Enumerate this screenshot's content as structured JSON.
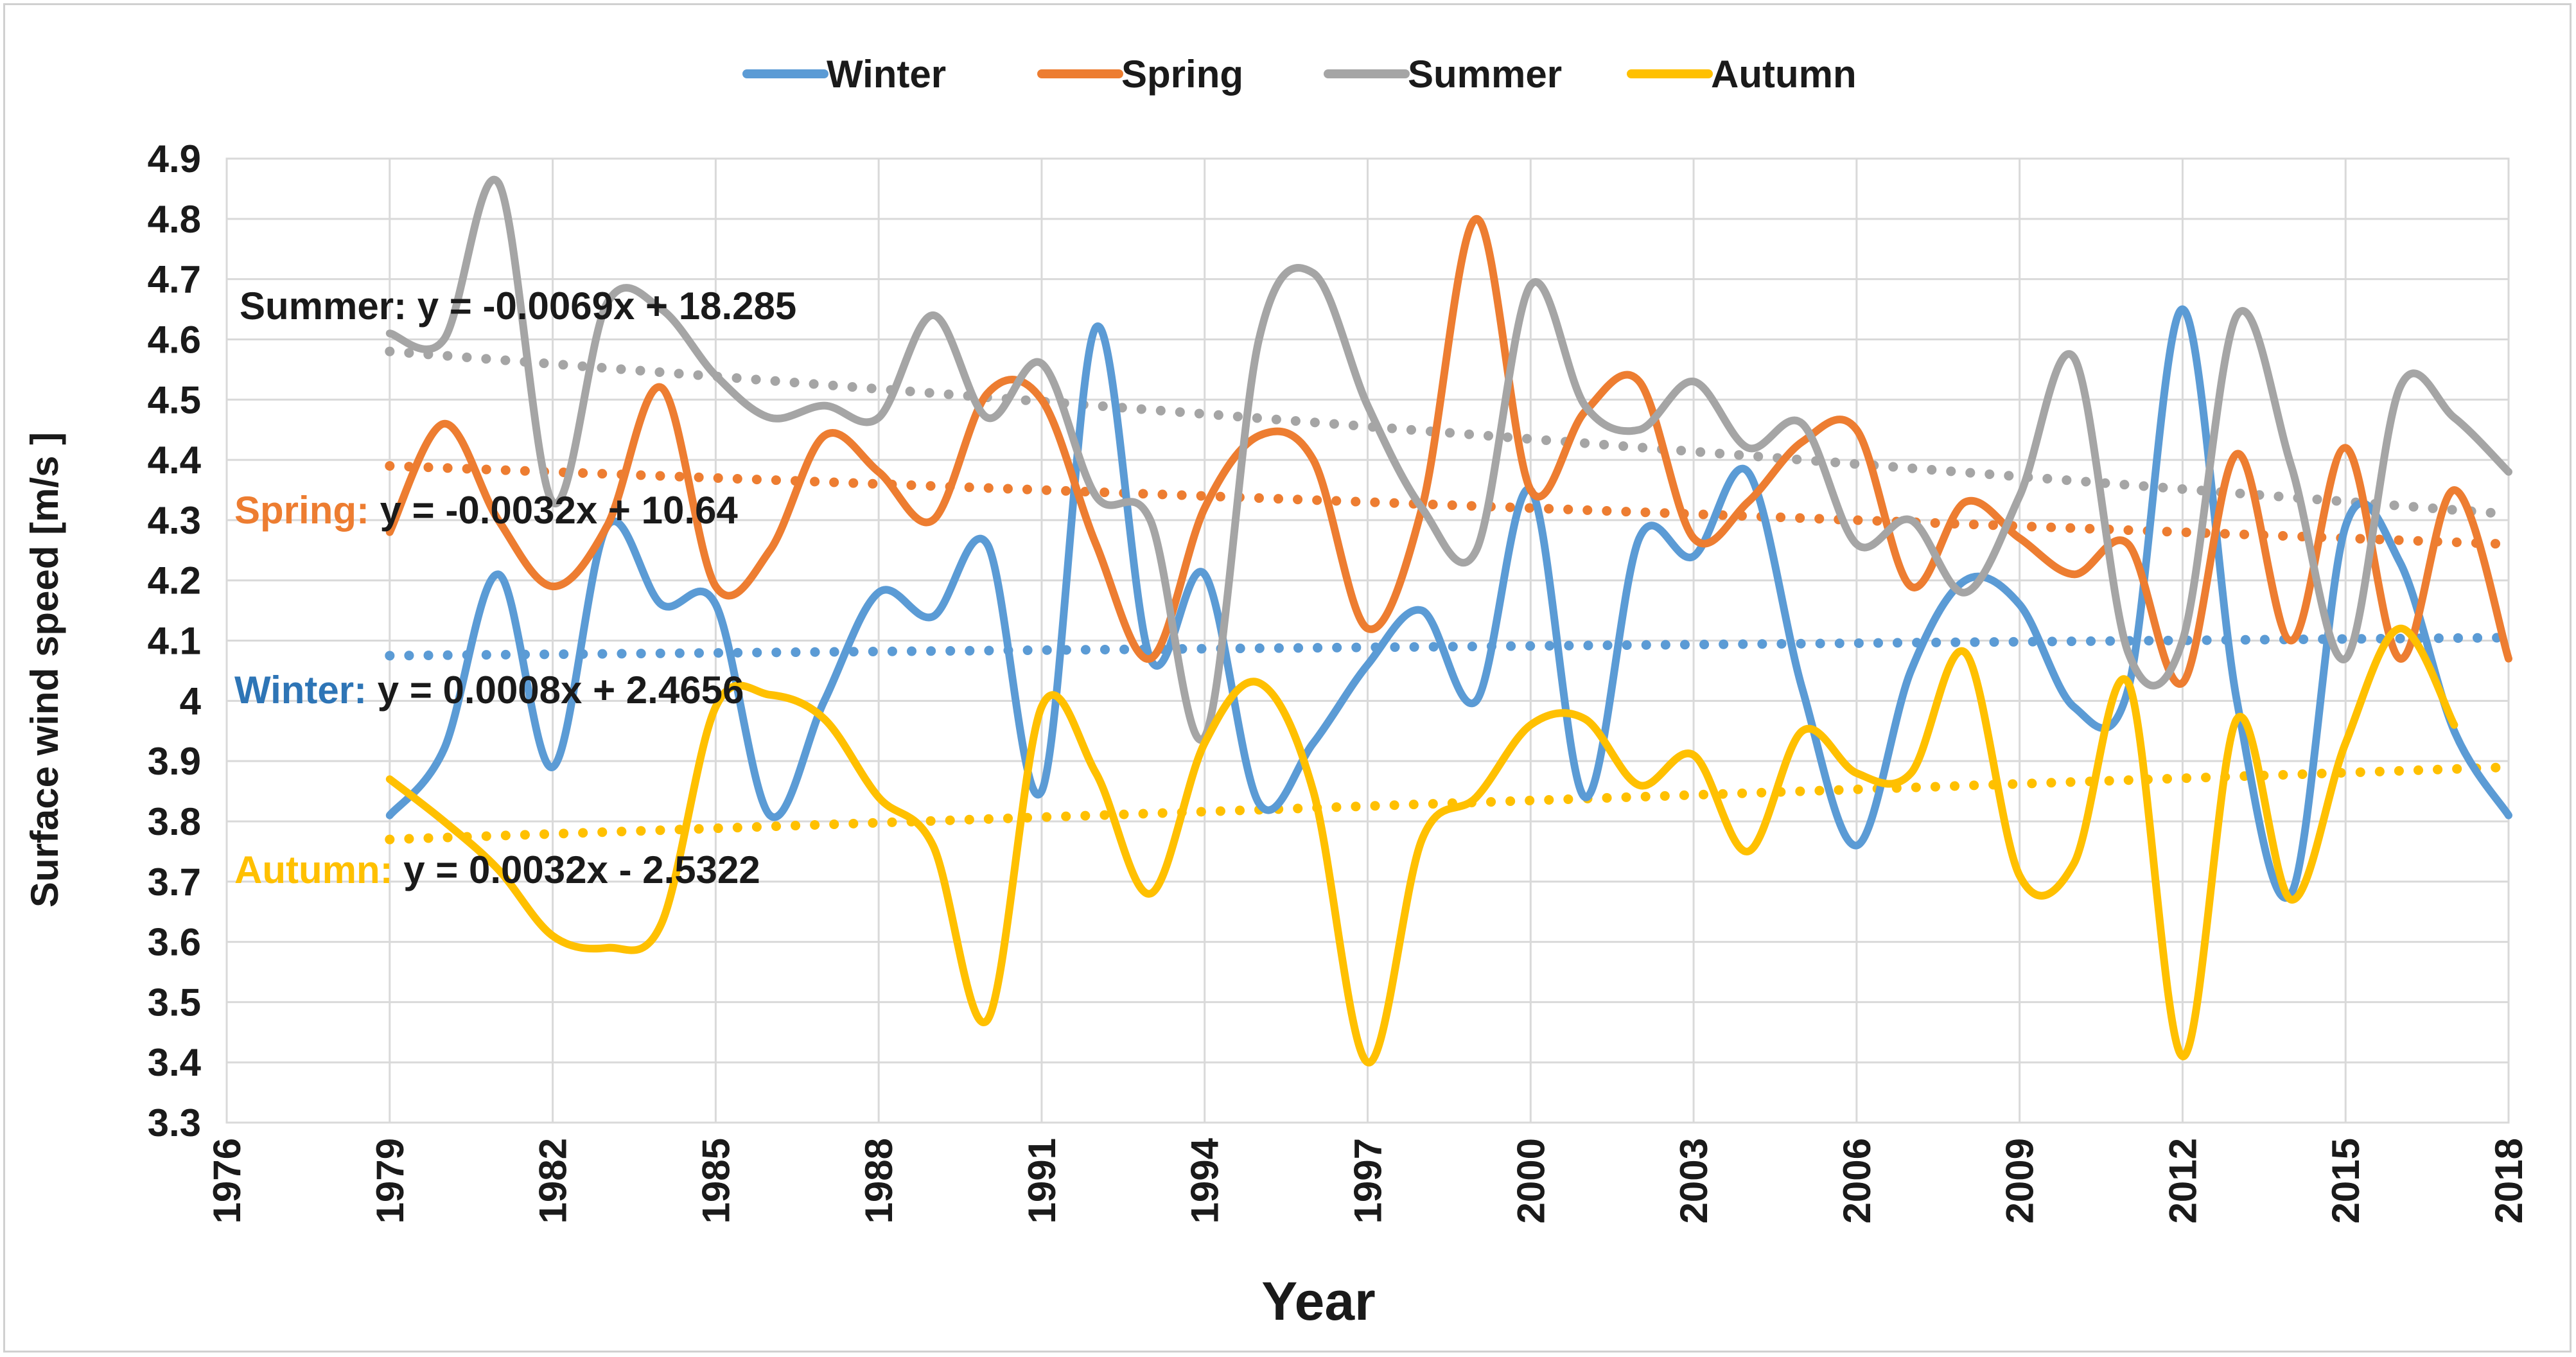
{
  "chart_data": {
    "type": "line",
    "title": "",
    "xlabel": "Year",
    "ylabel": "Surface wind speed  [m/s ]",
    "xlim": [
      1976,
      2018
    ],
    "ylim": [
      3.3,
      4.9
    ],
    "x_ticks": [
      "1976",
      "1979",
      "1982",
      "1985",
      "1988",
      "1991",
      "1994",
      "1997",
      "2000",
      "2003",
      "2006",
      "2009",
      "2012",
      "2015",
      "2018"
    ],
    "y_ticks": [
      "3.3",
      "3.4",
      "3.5",
      "3.6",
      "3.7",
      "3.8",
      "3.9",
      "4",
      "4.1",
      "4.2",
      "4.3",
      "4.4",
      "4.5",
      "4.6",
      "4.7",
      "4.8",
      "4.9"
    ],
    "grid": true,
    "legend_position": "top",
    "x": [
      1979,
      1980,
      1981,
      1982,
      1983,
      1984,
      1985,
      1986,
      1987,
      1988,
      1989,
      1990,
      1991,
      1992,
      1993,
      1994,
      1995,
      1996,
      1997,
      1998,
      1999,
      2000,
      2001,
      2002,
      2003,
      2004,
      2005,
      2006,
      2007,
      2008,
      2009,
      2010,
      2011,
      2012,
      2013,
      2014,
      2015,
      2016,
      2017,
      2018
    ],
    "series": [
      {
        "name": "Winter",
        "color": "#5B9BD5",
        "values": [
          3.81,
          3.92,
          4.21,
          3.89,
          4.29,
          4.16,
          4.16,
          3.81,
          4.0,
          4.18,
          4.14,
          4.26,
          3.85,
          4.62,
          4.07,
          4.21,
          3.83,
          3.93,
          4.06,
          4.15,
          4.0,
          4.35,
          3.84,
          4.27,
          4.24,
          4.38,
          4.02,
          3.76,
          4.05,
          4.2,
          4.16,
          3.99,
          4.02,
          4.65,
          4.0,
          3.68,
          4.29,
          4.23,
          3.95,
          3.81
        ],
        "trend": {
          "label_prefix": "Winter: ",
          "equation": "y = 0.0008x + 2.4656",
          "slope": 0.0008,
          "intercept": 2.4656,
          "start": 4.075,
          "end": 4.105
        }
      },
      {
        "name": "Spring",
        "color": "#ED7D31",
        "values": [
          4.28,
          4.46,
          4.3,
          4.19,
          4.29,
          4.52,
          4.19,
          4.25,
          4.44,
          4.38,
          4.3,
          4.51,
          4.5,
          4.26,
          4.07,
          4.32,
          4.44,
          4.4,
          4.12,
          4.32,
          4.8,
          4.35,
          4.48,
          4.53,
          4.27,
          4.33,
          4.43,
          4.45,
          4.19,
          4.33,
          4.27,
          4.21,
          4.26,
          4.03,
          4.41,
          4.1,
          4.42,
          4.07,
          4.35,
          4.07
        ],
        "trend": {
          "label_prefix": "Spring: ",
          "equation": "y = -0.0032x + 10.64",
          "slope": -0.0032,
          "intercept": 10.64,
          "start": 4.39,
          "end": 4.26
        }
      },
      {
        "name": "Summer",
        "color": "#A5A5A5",
        "values": [
          4.61,
          4.6,
          4.86,
          4.33,
          4.66,
          4.65,
          4.54,
          4.47,
          4.49,
          4.47,
          4.64,
          4.47,
          4.56,
          4.34,
          4.3,
          3.94,
          4.6,
          4.71,
          4.49,
          4.32,
          4.25,
          4.69,
          4.49,
          4.45,
          4.53,
          4.42,
          4.46,
          4.26,
          4.3,
          4.18,
          4.34,
          4.57,
          4.08,
          4.1,
          4.64,
          4.39,
          4.07,
          4.52,
          4.47,
          4.38
        ],
        "trend": {
          "label_prefix": "Summer: ",
          "equation": "y = -0.0069x + 18.285",
          "slope": -0.0069,
          "intercept": 18.285,
          "start": 4.58,
          "end": 4.31
        }
      },
      {
        "name": "Autumn",
        "color": "#FFC000",
        "values": [
          3.87,
          3.8,
          3.72,
          3.61,
          3.59,
          3.63,
          3.99,
          4.01,
          3.97,
          3.84,
          3.76,
          3.47,
          3.99,
          3.88,
          3.68,
          3.93,
          4.03,
          3.85,
          3.4,
          3.77,
          3.84,
          3.96,
          3.97,
          3.86,
          3.91,
          3.75,
          3.95,
          3.88,
          3.88,
          4.08,
          3.71,
          3.73,
          4.03,
          3.41,
          3.97,
          3.67,
          3.93,
          4.12,
          3.96,
          null
        ],
        "trend": {
          "label_prefix": "Autumn: ",
          "equation": "y = 0.0032x - 2.5322",
          "slope": 0.0032,
          "intercept": -2.5322,
          "start": 3.77,
          "end": 3.89
        }
      }
    ]
  }
}
